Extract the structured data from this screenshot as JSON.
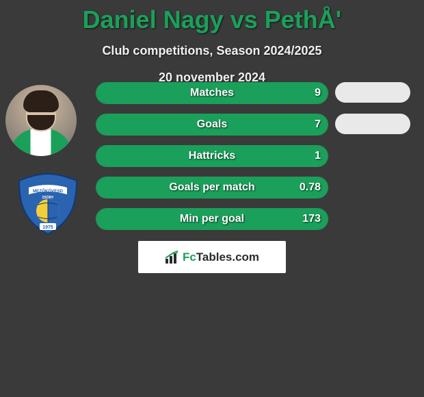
{
  "title": "Daniel Nagy vs PethÅ'",
  "subtitle": "Club competitions, Season 2024/2025",
  "date_line": "20 november 2024",
  "colors": {
    "accent": "#1aa05a",
    "background": "#3a3a3a",
    "bar_bg": "#505050",
    "pill_bg": "#e9e9e9",
    "text": "#ffffff"
  },
  "stats": [
    {
      "label": "Matches",
      "left_value": "9",
      "left_fill_pct": 100
    },
    {
      "label": "Goals",
      "left_value": "7",
      "left_fill_pct": 100
    },
    {
      "label": "Hattricks",
      "left_value": "1",
      "left_fill_pct": 100
    },
    {
      "label": "Goals per match",
      "left_value": "0.78",
      "left_fill_pct": 100
    },
    {
      "label": "Min per goal",
      "left_value": "173",
      "left_fill_pct": 100
    }
  ],
  "right_pills": [
    {
      "visible": true
    },
    {
      "visible": true
    },
    {
      "visible": false
    },
    {
      "visible": false
    },
    {
      "visible": false
    }
  ],
  "player1": {
    "name": "Daniel Nagy",
    "shirt_colors": [
      "#1aa05a",
      "#ffffff"
    ]
  },
  "player2": {
    "name": "PethÅ'"
  },
  "badge": {
    "text_top": "MEZŐKÖVESD",
    "text_mid": "ZSÓRY",
    "year": "1975",
    "colors": {
      "outer": "#2a63b0",
      "ball_light": "#f2cf3a",
      "ball_dark": "#2a63b0",
      "ribbon": "#ffffff"
    }
  },
  "brand": {
    "prefix": "Fc",
    "suffix": "Tables.com"
  }
}
